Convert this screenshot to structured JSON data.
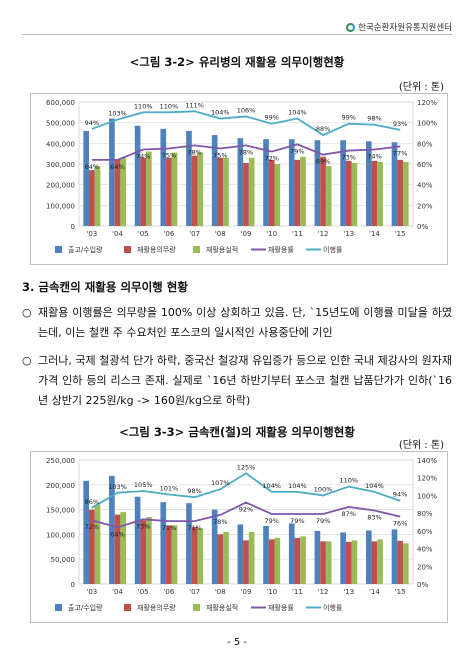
{
  "header": {
    "org": "한국순환자원유통지원센터"
  },
  "figure1": {
    "title": "<그림 3-2> 유리병의 재활용 의무이행현황",
    "unit": "(단위 : 톤)"
  },
  "section": {
    "heading": "3. 금속캔의 재활용 의무이행 현황"
  },
  "bullets": [
    {
      "mark": "○",
      "text": "재활용 이행률은 의무량을 100% 이상 상회하고 있음. 단, `15년도에 이행률 미달을 하였는데, 이는 철캔 주 수요처인 포스코의 일시적인 사용중단에 기인"
    },
    {
      "mark": "○",
      "text": "그러나, 국제 철광석 단가 하락, 중국산 철강재 유입증가 등으로 인한 국내 제강사의 원자재 가격 인하 등의 리스크 존재. 실제로 `16년 하반기부터 포스코 철캔 납품단가가 인하(`16년 상반기 225원/kg -> 160원/kg으로 하락)"
    }
  ],
  "figure2": {
    "title": "<그림 3-3> 금속캔(철)의 재활용 의무이행현황",
    "unit": "(단위 : 톤)"
  },
  "page": {
    "number": "- 5 -"
  },
  "chart_data": [
    {
      "type": "bar",
      "categories": [
        "'03",
        "'04",
        "'05",
        "'06",
        "'07",
        "'08",
        "'09",
        "'10",
        "'11",
        "'12",
        "'13",
        "'14",
        "'15"
      ],
      "ylim": [
        0,
        600000
      ],
      "y2lim": [
        0,
        1.2
      ],
      "yticks": [
        "600,000",
        "500,000",
        "400,000",
        "300,000",
        "200,000",
        "100,000",
        "0"
      ],
      "y2ticks": [
        "120%",
        "100%",
        "80%",
        "60%",
        "40%",
        "20%",
        "0%"
      ],
      "series": [
        {
          "name": "출고/수입량",
          "kind": "bar",
          "color": "#4f81bd",
          "values": [
            460000,
            520000,
            485000,
            470000,
            460000,
            440000,
            425000,
            420000,
            420000,
            415000,
            415000,
            410000,
            405000
          ]
        },
        {
          "name": "재활용의무량",
          "kind": "bar",
          "color": "#c0504d",
          "values": [
            270000,
            320000,
            330000,
            330000,
            340000,
            330000,
            305000,
            320000,
            320000,
            335000,
            315000,
            315000,
            320000
          ]
        },
        {
          "name": "재활용실적",
          "kind": "bar",
          "color": "#9bbb59",
          "values": [
            290000,
            330000,
            360000,
            355000,
            355000,
            330000,
            330000,
            300000,
            335000,
            290000,
            305000,
            310000,
            310000
          ]
        },
        {
          "name": "재활용률",
          "kind": "line",
          "color": "#7f56a8",
          "values": [
            0.64,
            0.64,
            0.74,
            0.75,
            0.78,
            0.75,
            0.78,
            0.72,
            0.79,
            0.69,
            0.73,
            0.74,
            0.77
          ]
        },
        {
          "name": "이행률",
          "kind": "line",
          "color": "#4bacc6",
          "values": [
            0.94,
            1.03,
            1.1,
            1.1,
            1.11,
            1.04,
            1.06,
            0.99,
            1.04,
            0.88,
            0.99,
            0.98,
            0.93
          ]
        }
      ],
      "labels": {
        "재활용률": [
          "64%",
          "64%",
          "74%",
          "75%",
          "78%",
          "75%",
          "78%",
          "72%",
          "79%",
          "69%",
          "73%",
          "74%",
          "77%"
        ],
        "이행률": [
          "94%",
          "103%",
          "110%",
          "110%",
          "111%",
          "104%",
          "106%",
          "99%",
          "104%",
          "88%",
          "99%",
          "98%",
          "93%"
        ]
      }
    },
    {
      "type": "bar",
      "categories": [
        "'03",
        "'04",
        "'05",
        "'06",
        "'07",
        "'08",
        "'09",
        "'10",
        "'11",
        "'12",
        "'13",
        "'14",
        "'15"
      ],
      "ylim": [
        0,
        250000
      ],
      "y2lim": [
        0,
        1.4
      ],
      "yticks": [
        "250,000",
        "200,000",
        "150,000",
        "100,000",
        "50,000",
        "0"
      ],
      "y2ticks": [
        "140%",
        "120%",
        "100%",
        "80%",
        "60%",
        "40%",
        "20%",
        "0%"
      ],
      "series": [
        {
          "name": "출고/수입량",
          "kind": "bar",
          "color": "#4f81bd",
          "values": [
            208000,
            218000,
            176000,
            165000,
            163000,
            150000,
            120000,
            117000,
            122000,
            107000,
            104000,
            108000,
            110000
          ]
        },
        {
          "name": "재활용의무량",
          "kind": "bar",
          "color": "#c0504d",
          "values": [
            150000,
            140000,
            128000,
            118000,
            115000,
            100000,
            88000,
            90000,
            93000,
            86000,
            85000,
            86000,
            87000
          ]
        },
        {
          "name": "재활용실적",
          "kind": "bar",
          "color": "#9bbb59",
          "values": [
            160000,
            145000,
            135000,
            118000,
            112000,
            105000,
            105000,
            93000,
            96000,
            86000,
            88000,
            90000,
            82000
          ]
        },
        {
          "name": "재활용률",
          "kind": "line",
          "color": "#7f56a8",
          "values": [
            0.72,
            0.64,
            0.73,
            0.71,
            0.71,
            0.78,
            0.92,
            0.79,
            0.79,
            0.79,
            0.87,
            0.83,
            0.76
          ]
        },
        {
          "name": "이행률",
          "kind": "line",
          "color": "#4bacc6",
          "values": [
            0.86,
            1.03,
            1.05,
            1.01,
            0.98,
            1.07,
            1.25,
            1.04,
            1.04,
            1.0,
            1.1,
            1.04,
            0.94
          ]
        }
      ],
      "labels": {
        "재활용률": [
          "72%",
          "64%",
          "73%",
          "71%",
          "71%",
          "78%",
          "92%",
          "79%",
          "79%",
          "79%",
          "87%",
          "83%",
          "76%"
        ],
        "이행률": [
          "86%",
          "103%",
          "105%",
          "101%",
          "98%",
          "107%",
          "125%",
          "104%",
          "104%",
          "100%",
          "110%",
          "104%",
          "94%"
        ]
      }
    }
  ]
}
